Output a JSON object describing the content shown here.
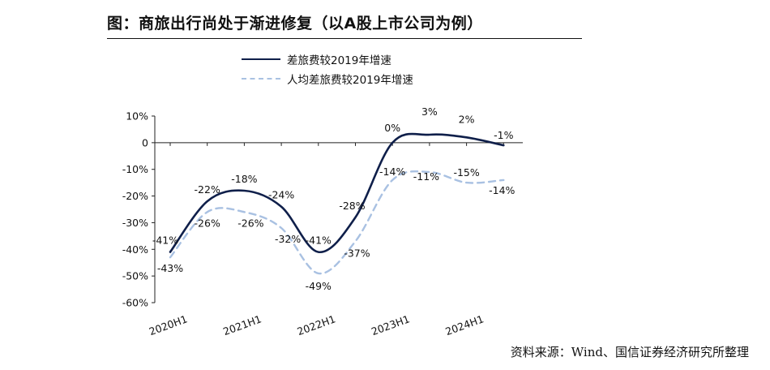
{
  "title": "图：商旅出行尚处于渐进修复（以A股上市公司为例）",
  "source": "资料来源：Wind、国信证券经济研究所整理",
  "chart_data": {
    "type": "line",
    "ylim": [
      -60,
      10
    ],
    "yticks": [
      10,
      0,
      -10,
      -20,
      -30,
      -40,
      -50,
      -60
    ],
    "ytick_labels": [
      "10%",
      "0",
      "-10%",
      "-20%",
      "-30%",
      "-40%",
      "-50%",
      "-60%"
    ],
    "xtick_labels": [
      "2020H1",
      "2021H1",
      "2022H1",
      "2023H1",
      "2024H1"
    ],
    "legend_position": "top",
    "series": [
      {
        "name": "差旅费较2019年增速",
        "style": "solid",
        "color": "#0f1f4a",
        "values": [
          -41,
          -22,
          -18,
          -24,
          -41,
          -28,
          0,
          3,
          2,
          -1
        ],
        "labels": [
          "-41%",
          "-22%",
          "-18%",
          "-24%",
          "-41%",
          "-28%",
          "0%",
          "3%",
          "2%",
          "-1%"
        ]
      },
      {
        "name": "人均差旅费较2019年增速",
        "style": "dashed",
        "color": "#a9c1e2",
        "values": [
          -43,
          -26,
          -26,
          -32,
          -49,
          -37,
          -14,
          -11,
          -15,
          -14
        ],
        "labels": [
          "-43%",
          "-26%",
          "-26%",
          "-32%",
          "-49%",
          "-37%",
          "-14%",
          "-11%",
          "-15%",
          "-14%"
        ]
      }
    ]
  }
}
